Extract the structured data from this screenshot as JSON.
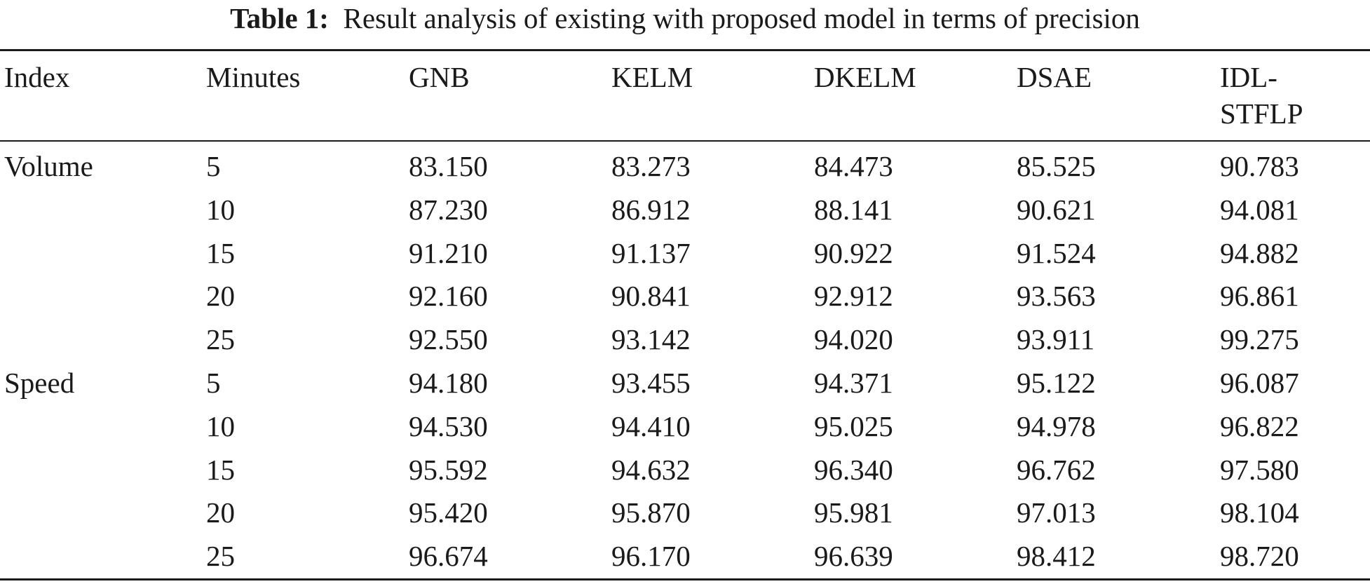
{
  "caption": {
    "label": "Table 1:",
    "text": "Result analysis of existing with proposed model in terms of precision"
  },
  "table": {
    "headers": [
      "Index",
      "Minutes",
      "GNB",
      "KELM",
      "DKELM",
      "DSAE",
      "IDL-STFLP"
    ],
    "header_last_line1": "IDL-",
    "header_last_line2": "STFLP",
    "rows": [
      [
        "Volume",
        "5",
        "83.150",
        "83.273",
        "84.473",
        "85.525",
        "90.783"
      ],
      [
        "",
        "10",
        "87.230",
        "86.912",
        "88.141",
        "90.621",
        "94.081"
      ],
      [
        "",
        "15",
        "91.210",
        "91.137",
        "90.922",
        "91.524",
        "94.882"
      ],
      [
        "",
        "20",
        "92.160",
        "90.841",
        "92.912",
        "93.563",
        "96.861"
      ],
      [
        "",
        "25",
        "92.550",
        "93.142",
        "94.020",
        "93.911",
        "99.275"
      ],
      [
        "Speed",
        "5",
        "94.180",
        "93.455",
        "94.371",
        "95.122",
        "96.087"
      ],
      [
        "",
        "10",
        "94.530",
        "94.410",
        "95.025",
        "94.978",
        "96.822"
      ],
      [
        "",
        "15",
        "95.592",
        "94.632",
        "96.340",
        "96.762",
        "97.580"
      ],
      [
        "",
        "20",
        "95.420",
        "95.870",
        "95.981",
        "97.013",
        "98.104"
      ],
      [
        "",
        "25",
        "96.674",
        "96.170",
        "96.639",
        "98.412",
        "98.720"
      ]
    ]
  }
}
